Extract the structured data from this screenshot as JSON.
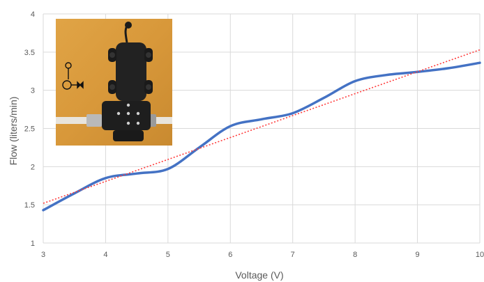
{
  "chart_data": {
    "type": "line",
    "title": "",
    "xlabel": "Voltage (V)",
    "ylabel": "Flow (liters/min)",
    "xlim": [
      3,
      10
    ],
    "ylim": [
      1,
      4
    ],
    "x_ticks": [
      "3",
      "4",
      "5",
      "6",
      "7",
      "8",
      "9",
      "10"
    ],
    "y_ticks": [
      "1",
      "1.5",
      "2",
      "2.5",
      "3",
      "3.5",
      "4"
    ],
    "grid": "vertical-and-horizontal",
    "legend": "none",
    "series": [
      {
        "kind": "measured",
        "color": "#4472c4",
        "style": "solid-smooth",
        "x": [
          3,
          3.5,
          4,
          4.5,
          5,
          5.5,
          6,
          6.5,
          7,
          7.5,
          8,
          8.5,
          9,
          9.5,
          10
        ],
        "y": [
          1.43,
          1.65,
          1.85,
          1.91,
          1.97,
          2.25,
          2.53,
          2.62,
          2.7,
          2.9,
          3.12,
          3.2,
          3.24,
          3.29,
          3.36
        ]
      },
      {
        "kind": "linear-trend",
        "color": "#ff3b3b",
        "style": "dotted",
        "x": [
          3,
          10
        ],
        "y": [
          1.52,
          3.53
        ]
      }
    ],
    "inset": {
      "description_icon": "pump-photo-icon",
      "symbol": "pump-symbol-icon"
    }
  }
}
